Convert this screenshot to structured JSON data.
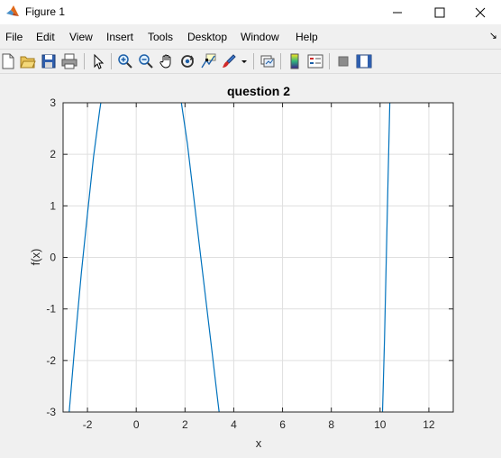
{
  "window": {
    "title": "Figure 1",
    "minimize_glyph": "—",
    "maximize_glyph": "☐",
    "close_glyph": "✕"
  },
  "menubar": {
    "items": [
      "File",
      "Edit",
      "View",
      "Insert",
      "Tools",
      "Desktop",
      "Window",
      "Help"
    ],
    "dock_arrow": "↘"
  },
  "toolbar": {
    "icons": [
      "new-figure-icon",
      "open-file-icon",
      "save-icon",
      "print-icon",
      "select-arrow-icon",
      "zoom-in-icon",
      "zoom-out-icon",
      "pan-hand-icon",
      "rotate-3d-icon",
      "data-cursor-icon",
      "brush-icon",
      "brush-dropdown-icon",
      "link-plot-icon",
      "insert-colorbar-icon",
      "insert-legend-icon",
      "hide-plot-tools-icon",
      "show-plot-tools-icon"
    ]
  },
  "colors": {
    "line": "#0072bd",
    "grid": "#dfdfdf",
    "axes_bg": "#ffffff",
    "figure_bg": "#f0f0f0"
  },
  "chart_data": {
    "type": "line",
    "title": "question 2",
    "xlabel": "x",
    "ylabel": "f(x)",
    "xlim": [
      -3,
      13
    ],
    "ylim": [
      -3,
      3
    ],
    "xticks": [
      -2,
      0,
      2,
      4,
      6,
      8,
      10,
      12
    ],
    "yticks": [
      -3,
      -2,
      -1,
      0,
      1,
      2,
      3
    ],
    "grid": true,
    "series": [
      {
        "segments": [
          [
            [
              -2.75,
              -3.0
            ],
            [
              -2.5,
              -1.6
            ],
            [
              -2.25,
              -0.3
            ],
            [
              -2.0,
              0.85
            ],
            [
              -1.75,
              1.95
            ],
            [
              -1.5,
              2.85
            ],
            [
              -1.45,
              3.0
            ]
          ],
          [
            [
              1.85,
              3.0
            ],
            [
              2.1,
              2.2
            ],
            [
              2.35,
              1.2
            ],
            [
              2.6,
              0.2
            ],
            [
              2.85,
              -0.8
            ],
            [
              3.1,
              -1.8
            ],
            [
              3.35,
              -2.8
            ],
            [
              3.4,
              -3.0
            ]
          ],
          [
            [
              10.1,
              -3.0
            ],
            [
              10.18,
              -1.6
            ],
            [
              10.25,
              -0.1
            ],
            [
              10.32,
              1.4
            ],
            [
              10.4,
              3.0
            ]
          ]
        ]
      }
    ]
  }
}
